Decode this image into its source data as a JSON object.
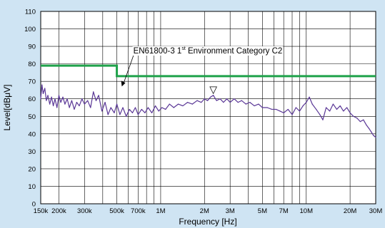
{
  "background_color": "#cfe4f3",
  "plot_background_color": "#ffffff",
  "chart_data": {
    "type": "line",
    "title": "",
    "xlabel": "Frequency [Hz]",
    "ylabel": "Level[dBμV]",
    "xscale": "log",
    "xlim": [
      150000,
      30000000
    ],
    "ylim": [
      0,
      110
    ],
    "grid": true,
    "x_tick_labels": [
      {
        "label": "150k",
        "value": 150000
      },
      {
        "label": "200k",
        "value": 200000
      },
      {
        "label": "300k",
        "value": 300000
      },
      {
        "label": "500k",
        "value": 500000
      },
      {
        "label": "700k",
        "value": 700000
      },
      {
        "label": "1M",
        "value": 1000000
      },
      {
        "label": "2M",
        "value": 2000000
      },
      {
        "label": "3M",
        "value": 3000000
      },
      {
        "label": "5M",
        "value": 5000000
      },
      {
        "label": "7M",
        "value": 7000000
      },
      {
        "label": "10M",
        "value": 10000000
      },
      {
        "label": "20M",
        "value": 20000000
      },
      {
        "label": "30M",
        "value": 30000000
      }
    ],
    "x_minor_gridlines": [
      400000,
      600000,
      800000,
      900000,
      4000000,
      6000000,
      8000000,
      9000000
    ],
    "y_ticks": [
      0,
      10,
      20,
      30,
      40,
      50,
      60,
      70,
      80,
      90,
      100,
      110
    ],
    "limit_line": {
      "color": "#1fa24a",
      "points": [
        [
          150000,
          79
        ],
        [
          500000,
          79
        ],
        [
          500000,
          73
        ],
        [
          30000000,
          73
        ]
      ]
    },
    "annotation": {
      "text_before": "EN61800-3 1",
      "superscript": "st",
      "text_after": " Environment Category C2",
      "target": [
        500000,
        74
      ]
    },
    "peak_marker": {
      "symbol": "▽",
      "x": 2300000,
      "y": 63
    },
    "series": [
      {
        "color": "#5a3796",
        "points": [
          [
            150000,
            60
          ],
          [
            153000,
            68
          ],
          [
            156000,
            63
          ],
          [
            160000,
            66
          ],
          [
            164000,
            59
          ],
          [
            168000,
            62
          ],
          [
            173000,
            57
          ],
          [
            178000,
            61
          ],
          [
            183000,
            56
          ],
          [
            188000,
            60
          ],
          [
            194000,
            55
          ],
          [
            200000,
            62
          ],
          [
            206000,
            58
          ],
          [
            213000,
            61
          ],
          [
            220000,
            57
          ],
          [
            228000,
            60
          ],
          [
            236000,
            55
          ],
          [
            245000,
            59
          ],
          [
            255000,
            54
          ],
          [
            265000,
            58
          ],
          [
            276000,
            56
          ],
          [
            288000,
            60
          ],
          [
            300000,
            57
          ],
          [
            315000,
            59
          ],
          [
            330000,
            55
          ],
          [
            345000,
            64
          ],
          [
            360000,
            59
          ],
          [
            375000,
            62
          ],
          [
            395000,
            53
          ],
          [
            415000,
            58
          ],
          [
            435000,
            51
          ],
          [
            455000,
            55
          ],
          [
            480000,
            52
          ],
          [
            500000,
            57
          ],
          [
            525000,
            51
          ],
          [
            550000,
            55
          ],
          [
            580000,
            50
          ],
          [
            610000,
            54
          ],
          [
            640000,
            52
          ],
          [
            670000,
            55
          ],
          [
            700000,
            51
          ],
          [
            740000,
            54
          ],
          [
            780000,
            52
          ],
          [
            820000,
            55
          ],
          [
            870000,
            52
          ],
          [
            920000,
            56
          ],
          [
            970000,
            53
          ],
          [
            1020000,
            55
          ],
          [
            1080000,
            54
          ],
          [
            1150000,
            57
          ],
          [
            1230000,
            55
          ],
          [
            1320000,
            57
          ],
          [
            1420000,
            56
          ],
          [
            1530000,
            58
          ],
          [
            1650000,
            57
          ],
          [
            1780000,
            59
          ],
          [
            1900000,
            58
          ],
          [
            2000000,
            60
          ],
          [
            2100000,
            59
          ],
          [
            2200000,
            61
          ],
          [
            2300000,
            62
          ],
          [
            2420000,
            59
          ],
          [
            2560000,
            60
          ],
          [
            2700000,
            58
          ],
          [
            2850000,
            60
          ],
          [
            3000000,
            58
          ],
          [
            3200000,
            60
          ],
          [
            3400000,
            58
          ],
          [
            3600000,
            59
          ],
          [
            3850000,
            57
          ],
          [
            4100000,
            58
          ],
          [
            4400000,
            56
          ],
          [
            4700000,
            57
          ],
          [
            5000000,
            55
          ],
          [
            5400000,
            55
          ],
          [
            5800000,
            54
          ],
          [
            6200000,
            54
          ],
          [
            6600000,
            53
          ],
          [
            7000000,
            52
          ],
          [
            7500000,
            54
          ],
          [
            8000000,
            51
          ],
          [
            8500000,
            55
          ],
          [
            9000000,
            53
          ],
          [
            9500000,
            56
          ],
          [
            10000000,
            58
          ],
          [
            10500000,
            61
          ],
          [
            11000000,
            57
          ],
          [
            11700000,
            54
          ],
          [
            12400000,
            51
          ],
          [
            13000000,
            48
          ],
          [
            13700000,
            55
          ],
          [
            14500000,
            53
          ],
          [
            15300000,
            57
          ],
          [
            16200000,
            54
          ],
          [
            17100000,
            56
          ],
          [
            18000000,
            53
          ],
          [
            19000000,
            55
          ],
          [
            20000000,
            52
          ],
          [
            21100000,
            50
          ],
          [
            22300000,
            49
          ],
          [
            23500000,
            47
          ],
          [
            24700000,
            48
          ],
          [
            25900000,
            45
          ],
          [
            27000000,
            43
          ],
          [
            28000000,
            41
          ],
          [
            29000000,
            39
          ],
          [
            30000000,
            38
          ]
        ]
      }
    ]
  }
}
